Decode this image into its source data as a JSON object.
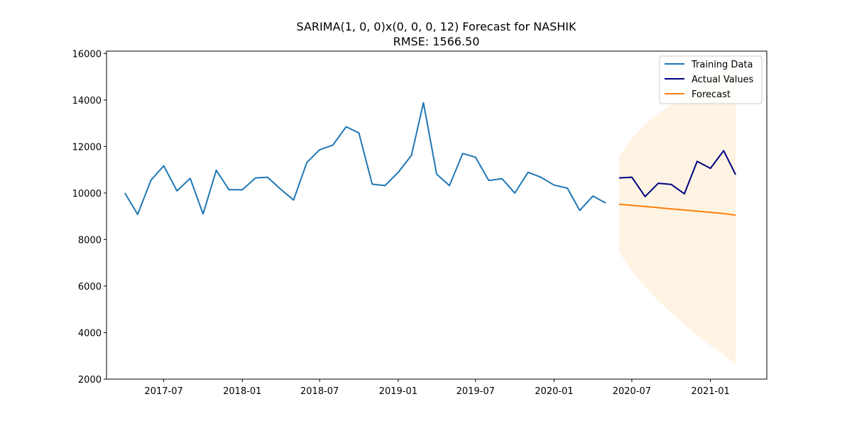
{
  "chart_data": {
    "type": "line",
    "title": "SARIMA(1, 0, 0)x(0, 0, 0, 12) Forecast for NASHIK",
    "subtitle": "RMSE: 1566.50",
    "xlabel": "",
    "ylabel": "",
    "ylim": [
      2000,
      16100
    ],
    "xlim": [
      "2017-02-17",
      "2021-05-13"
    ],
    "yticks": [
      2000,
      4000,
      6000,
      8000,
      10000,
      12000,
      14000,
      16000
    ],
    "xticks": [
      "2017-07",
      "2018-01",
      "2018-07",
      "2019-01",
      "2019-07",
      "2020-01",
      "2020-07",
      "2021-01"
    ],
    "legend_position": "top-right",
    "grid": false,
    "series": [
      {
        "name": "Training Data",
        "color": "#1f77b4",
        "x": [
          "2017-04",
          "2017-05",
          "2017-06",
          "2017-07",
          "2017-08",
          "2017-09",
          "2017-10",
          "2017-11",
          "2017-12",
          "2018-01",
          "2018-02",
          "2018-03",
          "2018-04",
          "2018-05",
          "2018-06",
          "2018-07",
          "2018-08",
          "2018-09",
          "2018-10",
          "2018-11",
          "2018-12",
          "2019-01",
          "2019-02",
          "2019-03",
          "2019-04",
          "2019-05",
          "2019-06",
          "2019-07",
          "2019-08",
          "2019-09",
          "2019-10",
          "2019-11",
          "2019-12",
          "2020-01",
          "2020-02",
          "2020-03",
          "2020-04",
          "2020-05"
        ],
        "values": [
          10000,
          9080,
          10550,
          11170,
          10090,
          10630,
          9100,
          10980,
          10140,
          10140,
          10650,
          10680,
          10160,
          9700,
          11310,
          11860,
          12060,
          12850,
          12580,
          10380,
          10320,
          10890,
          11620,
          13880,
          10810,
          10320,
          11700,
          11540,
          10540,
          10620,
          10000,
          10890,
          10680,
          10340,
          10210,
          9250,
          9870,
          9570
        ]
      },
      {
        "name": "Actual Values",
        "color": "#000080",
        "x": [
          "2020-06",
          "2020-07",
          "2020-08",
          "2020-09",
          "2020-10",
          "2020-11",
          "2020-12",
          "2021-01",
          "2021-02",
          "2021-03"
        ],
        "values": [
          10650,
          10680,
          9850,
          10420,
          10370,
          9970,
          11360,
          11060,
          11820,
          10790
        ]
      },
      {
        "name": "Forecast",
        "color": "#ff7f0e",
        "x": [
          "2020-06",
          "2020-07",
          "2020-08",
          "2020-09",
          "2020-10",
          "2020-11",
          "2020-12",
          "2021-01",
          "2021-02",
          "2021-03"
        ],
        "values": [
          9520,
          9470,
          9420,
          9370,
          9320,
          9270,
          9220,
          9170,
          9120,
          9050
        ]
      }
    ],
    "confidence_band": {
      "color": "#ffdfb3",
      "opacity": 0.35,
      "x": [
        "2020-06",
        "2020-07",
        "2020-08",
        "2020-09",
        "2020-10",
        "2020-11",
        "2020-12",
        "2021-01",
        "2021-02",
        "2021-03"
      ],
      "upper": [
        11600,
        12350,
        12950,
        13400,
        13800,
        14200,
        14600,
        15000,
        15400,
        15800
      ],
      "lower": [
        7450,
        6650,
        5950,
        5350,
        4850,
        4350,
        3900,
        3450,
        3050,
        2600
      ]
    }
  }
}
